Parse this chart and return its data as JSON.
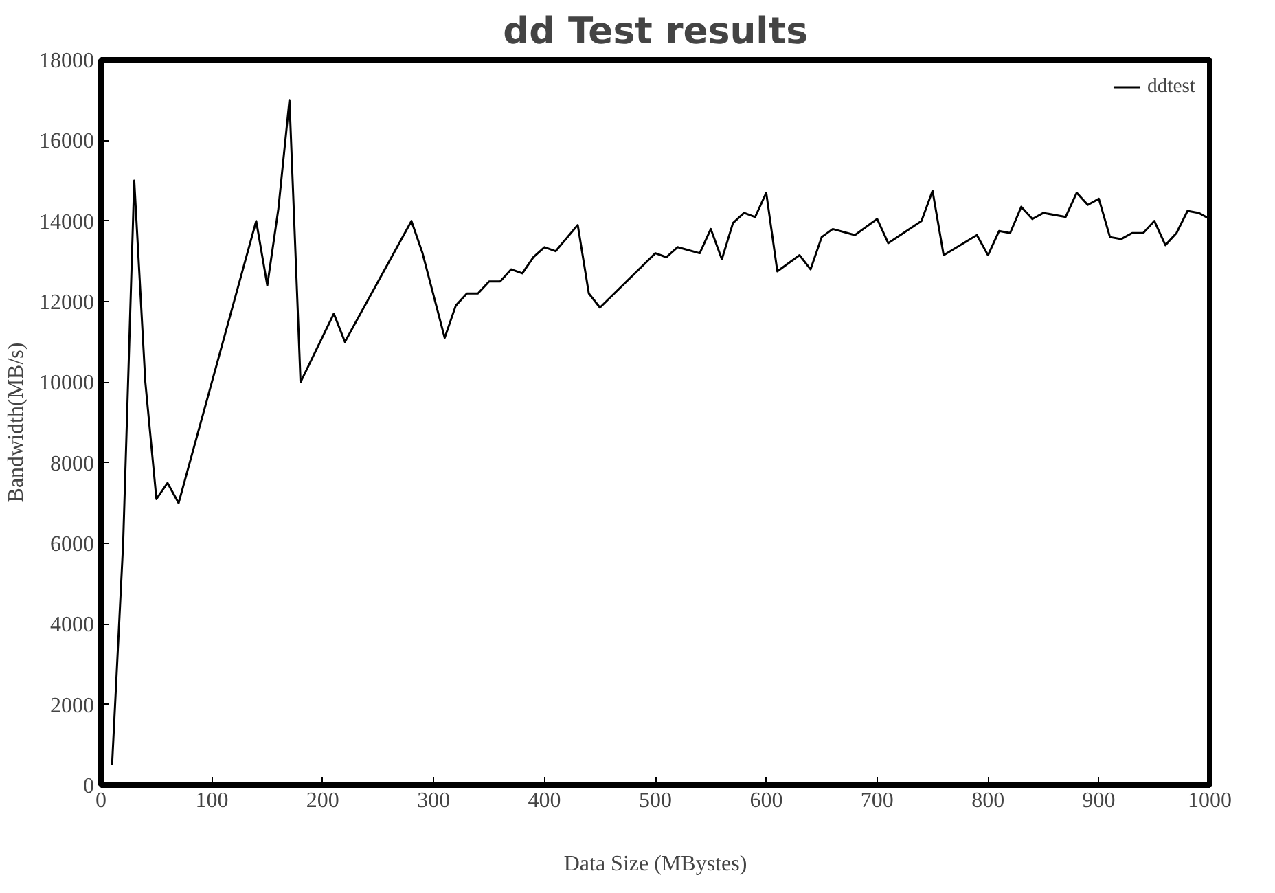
{
  "chart_data": {
    "type": "line",
    "title": "dd Test results",
    "xlabel": "Data Size (MBystes)",
    "ylabel": "Bandwidth(MB/s)",
    "x": [
      10,
      20,
      30,
      40,
      50,
      60,
      70,
      140,
      150,
      160,
      170,
      180,
      210,
      220,
      280,
      290,
      310,
      320,
      330,
      340,
      350,
      360,
      370,
      380,
      390,
      400,
      410,
      430,
      440,
      450,
      500,
      510,
      520,
      540,
      550,
      560,
      570,
      580,
      590,
      600,
      610,
      630,
      640,
      650,
      660,
      680,
      700,
      710,
      740,
      750,
      760,
      790,
      800,
      810,
      820,
      830,
      840,
      850,
      870,
      880,
      890,
      900,
      910,
      920,
      930,
      940,
      950,
      960,
      970,
      980,
      990,
      1000
    ],
    "series": [
      {
        "name": "ddtest",
        "color": "#000000",
        "values": [
          500,
          6000,
          15000,
          10000,
          7100,
          7500,
          7000,
          14000,
          12400,
          14300,
          17000,
          10000,
          11700,
          11000,
          14000,
          13200,
          11100,
          11900,
          12200,
          12200,
          12500,
          12500,
          12800,
          12700,
          13100,
          13350,
          13250,
          13900,
          12200,
          11850,
          13200,
          13100,
          13350,
          13200,
          13800,
          13050,
          13950,
          14200,
          14100,
          14700,
          12750,
          13150,
          12800,
          13600,
          13800,
          13650,
          14050,
          13450,
          14000,
          14750,
          13150,
          13650,
          13150,
          13750,
          13700,
          14350,
          14050,
          14200,
          14100,
          14700,
          14400,
          14550,
          13600,
          13550,
          13700,
          13700,
          14000,
          13400,
          13700,
          14250,
          14200,
          14050
        ]
      }
    ],
    "xlim": [
      0,
      1000
    ],
    "ylim": [
      0,
      18000
    ],
    "xticks": [
      0,
      100,
      200,
      300,
      400,
      500,
      600,
      700,
      800,
      900,
      1000
    ],
    "yticks": [
      0,
      2000,
      4000,
      6000,
      8000,
      10000,
      12000,
      14000,
      16000,
      18000
    ],
    "grid": false,
    "legend": "top right",
    "marker": "none",
    "line_style": "solid"
  }
}
